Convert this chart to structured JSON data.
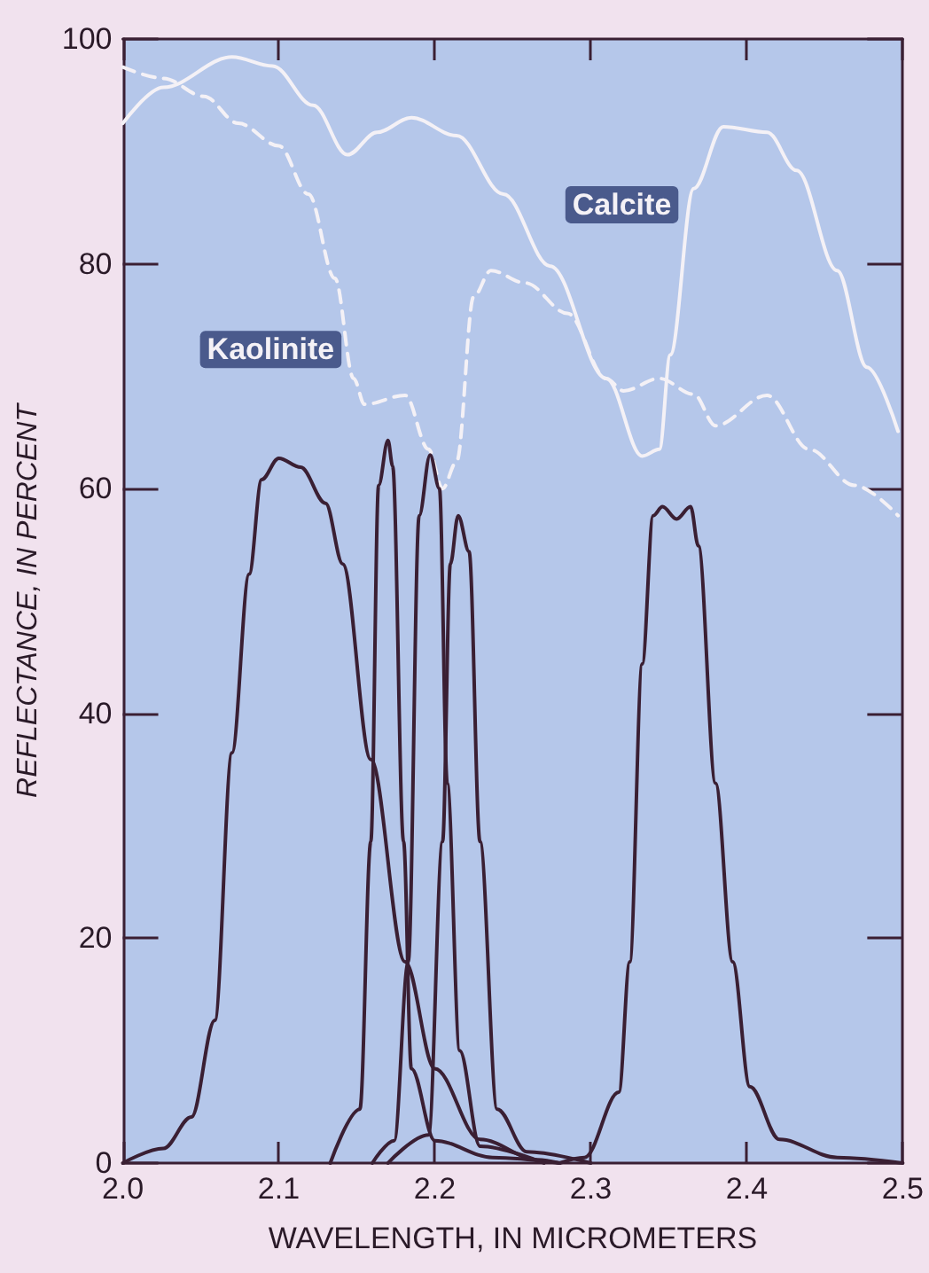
{
  "chart_data": {
    "type": "line",
    "xlabel": "WAVELENGTH, IN MICROMETERS",
    "ylabel": "REFLECTANCE, IN PERCENT",
    "xlim": [
      2.0,
      2.5
    ],
    "xticks": [
      {
        "value": 2.0,
        "label": "2.0"
      },
      {
        "value": 2.1,
        "label": "2.1"
      },
      {
        "value": 2.2,
        "label": "2.2"
      },
      {
        "value": 2.3,
        "label": "2.3"
      },
      {
        "value": 2.4,
        "label": "2.4"
      },
      {
        "value": 2.5,
        "label": "2.5"
      }
    ],
    "ylim": [
      0,
      100
    ],
    "yticks": [
      0,
      20,
      40,
      60,
      80,
      100
    ],
    "grid": false,
    "legend": false,
    "marker": "none",
    "series": [
      {
        "name": "Calcite",
        "color": "#f4f1f6",
        "line_style": "solid",
        "x": [
          2.0,
          2.026,
          2.07,
          2.096,
          2.122,
          2.144,
          2.163,
          2.185,
          2.214,
          2.244,
          2.274,
          2.31,
          2.333,
          2.344,
          2.351,
          2.366,
          2.385,
          2.413,
          2.432,
          2.458,
          2.477,
          2.497
        ],
        "values": [
          92.5,
          95.7,
          98.4,
          97.6,
          94.1,
          89.7,
          91.7,
          93,
          91.4,
          86.2,
          79.8,
          69.8,
          62.9,
          63.5,
          71.9,
          86.7,
          92.2,
          91.7,
          88.3,
          79.4,
          70.8,
          65.1
        ]
      },
      {
        "name": "Kaolinite",
        "color": "#f4f1f6",
        "line_style": "dashed",
        "x": [
          2.0,
          2.026,
          2.052,
          2.074,
          2.1,
          2.119,
          2.136,
          2.148,
          2.155,
          2.181,
          2.196,
          2.205,
          2.214,
          2.225,
          2.236,
          2.258,
          2.285,
          2.31,
          2.321,
          2.344,
          2.366,
          2.38,
          2.413,
          2.44,
          2.469,
          2.497
        ],
        "values": [
          97.5,
          96.5,
          94.9,
          92.5,
          90.5,
          86.2,
          78.7,
          69.8,
          67.5,
          68.3,
          63.5,
          60,
          62.4,
          77.1,
          79.4,
          78.3,
          75.6,
          69.8,
          68.7,
          69.8,
          68.4,
          65.6,
          68.3,
          63.5,
          60.3,
          57.6
        ]
      },
      {
        "color": "#3a1f33",
        "line_style": "solid",
        "x": [
          2.0,
          2.026,
          2.044,
          2.059,
          2.07,
          2.081,
          2.089,
          2.1,
          2.114,
          2.13,
          2.141,
          2.159,
          2.181,
          2.2,
          2.229,
          2.266,
          2.28
        ],
        "values": [
          0,
          1.3,
          4.1,
          12.7,
          36.5,
          52.4,
          60.8,
          62.7,
          61.9,
          58.7,
          53.3,
          35.9,
          17.9,
          8.4,
          2.1,
          0.3,
          0
        ]
      },
      {
        "color": "#3a1f33",
        "line_style": "solid",
        "x": [
          2.133,
          2.152,
          2.159,
          2.164,
          2.17,
          2.173,
          2.18,
          2.185,
          2.2,
          2.237,
          2.28
        ],
        "values": [
          0,
          4.8,
          28.6,
          60.3,
          64.3,
          62,
          28.6,
          8.4,
          2,
          0.5,
          0
        ]
      },
      {
        "color": "#3a1f33",
        "line_style": "solid",
        "x": [
          2.16,
          2.174,
          2.183,
          2.19,
          2.197,
          2.203,
          2.208,
          2.216,
          2.229,
          2.27
        ],
        "values": [
          0,
          2,
          17.9,
          57.6,
          63,
          60,
          33.8,
          10,
          1.5,
          0
        ]
      },
      {
        "color": "#3a1f33",
        "line_style": "solid",
        "x": [
          2.17,
          2.196,
          2.205,
          2.21,
          2.215,
          2.222,
          2.229,
          2.24,
          2.259,
          2.3
        ],
        "values": [
          0,
          2.5,
          28.6,
          53.3,
          57.6,
          54.4,
          28.6,
          4.8,
          1,
          0
        ]
      },
      {
        "color": "#3a1f33",
        "line_style": "solid",
        "x": [
          2.28,
          2.296,
          2.318,
          2.325,
          2.333,
          2.34,
          2.346,
          2.355,
          2.364,
          2.369,
          2.38,
          2.391,
          2.402,
          2.421,
          2.458,
          2.5
        ],
        "values": [
          0,
          0.5,
          6.3,
          17.9,
          44.4,
          57.6,
          58.4,
          57.3,
          58.4,
          54.9,
          33.8,
          17.9,
          6.8,
          2.1,
          0.5,
          0
        ]
      }
    ]
  }
}
